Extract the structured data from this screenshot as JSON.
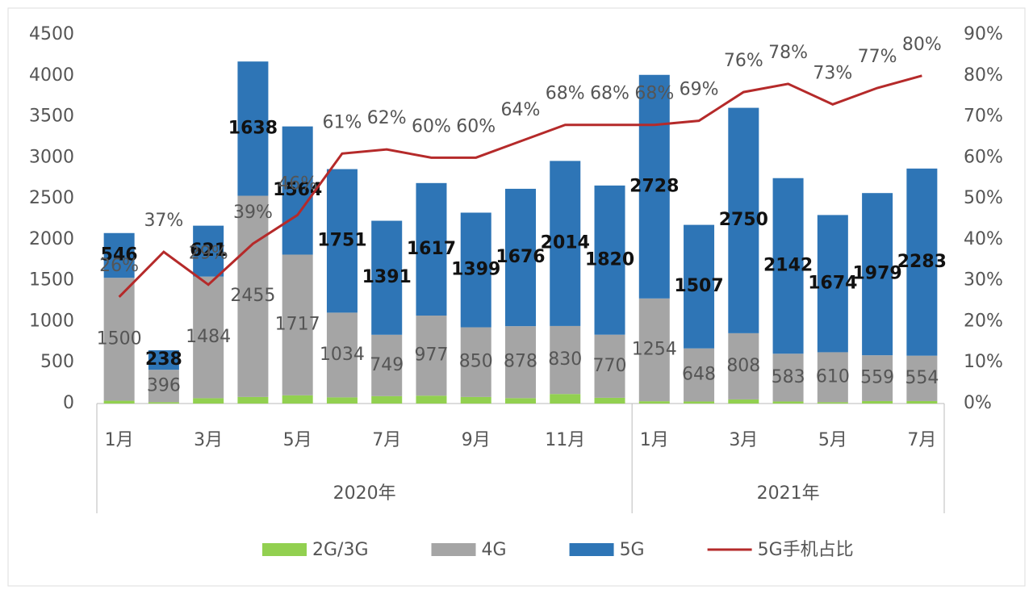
{
  "chart_data": {
    "type": "bar",
    "categories": [
      "1月",
      null,
      "3月",
      null,
      "5月",
      null,
      "7月",
      null,
      "9月",
      null,
      "11月",
      null,
      "1月",
      null,
      "3月",
      null,
      "5月",
      null,
      "7月"
    ],
    "x_groups": [
      {
        "label": "2020年",
        "count": 12
      },
      {
        "label": "2021年",
        "count": 7
      }
    ],
    "stacked": true,
    "series": [
      {
        "name": "2G/3G",
        "color": "#92d050",
        "values": [
          34,
          16,
          65,
          80,
          100,
          75,
          90,
          96,
          80,
          66,
          116,
          70,
          28,
          25,
          50,
          25,
          16,
          30,
          30
        ]
      },
      {
        "name": "4G",
        "color": "#a5a5a5",
        "values": [
          1500,
          396,
          1484,
          2455,
          1717,
          1034,
          749,
          977,
          850,
          878,
          830,
          770,
          1254,
          648,
          808,
          583,
          610,
          559,
          554
        ]
      },
      {
        "name": "5G",
        "color": "#2e75b6",
        "values": [
          546,
          238,
          621,
          1638,
          1564,
          1751,
          1391,
          1617,
          1399,
          1676,
          2014,
          1820,
          2728,
          1507,
          2750,
          2142,
          1674,
          1979,
          2283
        ]
      },
      {
        "name": "5G手机占比",
        "type": "line",
        "axis": "y2",
        "color": "#b52a2a",
        "values": [
          26,
          37,
          29,
          39,
          46,
          61,
          62,
          60,
          60,
          64,
          68,
          68,
          68,
          69,
          76,
          78,
          73,
          77,
          80
        ],
        "value_labels": [
          "26%",
          "37%",
          "29%",
          "39%",
          "46%",
          "61%",
          "62%",
          "60%",
          "60%",
          "64%",
          "68%",
          "68%",
          "68%",
          "69%",
          "76%",
          "78%",
          "73%",
          "77%",
          "80%"
        ]
      }
    ],
    "ylim": [
      0,
      4500
    ],
    "yticks": [
      0,
      500,
      1000,
      1500,
      2000,
      2500,
      3000,
      3500,
      4000,
      4500
    ],
    "y2lim": [
      0,
      90
    ],
    "y2ticks": [
      {
        "value": 0,
        "label": "0%"
      },
      {
        "value": 10,
        "label": "10%"
      },
      {
        "value": 20,
        "label": "20%"
      },
      {
        "value": 30,
        "label": "30%"
      },
      {
        "value": 40,
        "label": "40%"
      },
      {
        "value": 50,
        "label": "50%"
      },
      {
        "value": 60,
        "label": "60%"
      },
      {
        "value": 70,
        "label": "70%"
      },
      {
        "value": 80,
        "label": "80%"
      },
      {
        "value": 90,
        "label": "90%"
      }
    ],
    "legend": "bottom"
  }
}
